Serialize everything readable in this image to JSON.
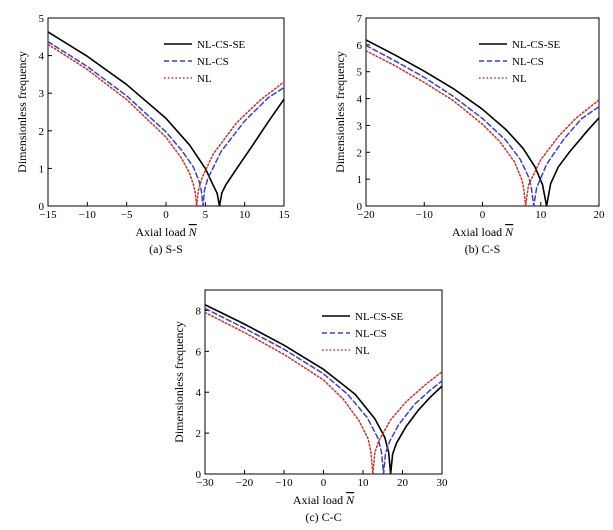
{
  "chart_data": [
    {
      "type": "line",
      "caption": "(a) S-S",
      "xlabel": "Axial load",
      "xlabel_symbol": "N",
      "ylabel": "Dimensionless frequency",
      "xlim": [
        -15,
        15
      ],
      "ylim": [
        0,
        5
      ],
      "xticks": [
        -15,
        -10,
        -5,
        0,
        5,
        10,
        15
      ],
      "yticks": [
        0,
        1,
        2,
        3,
        4,
        5
      ],
      "grid": false,
      "legend_position": "top-right",
      "series": [
        {
          "name": "NL-CS-SE",
          "color": "#000000",
          "style": "solid",
          "critical_load": 6.8,
          "x": [
            -15,
            -10,
            -5,
            0,
            3,
            5,
            6,
            6.5,
            6.8,
            7.1,
            7.6,
            9,
            11,
            13,
            15
          ],
          "y": [
            4.63,
            3.98,
            3.23,
            2.33,
            1.62,
            1.0,
            0.55,
            0.34,
            0.0,
            0.35,
            0.56,
            1.0,
            1.61,
            2.24,
            2.84
          ]
        },
        {
          "name": "NL-CS",
          "color": "#3a3fc8",
          "style": "dashed",
          "critical_load": 4.7,
          "x": [
            -15,
            -10,
            -5,
            0,
            2,
            3.5,
            4.2,
            4.5,
            4.7,
            4.9,
            5.3,
            7,
            10,
            13,
            15
          ],
          "y": [
            4.37,
            3.71,
            2.93,
            1.97,
            1.48,
            1.03,
            0.66,
            0.4,
            0.0,
            0.43,
            0.72,
            1.45,
            2.26,
            2.88,
            3.15
          ]
        },
        {
          "name": "NL",
          "color": "#c8322a",
          "style": "dotted",
          "critical_load": 3.9,
          "x": [
            -15,
            -10,
            -5,
            0,
            2,
            3,
            3.5,
            3.7,
            3.9,
            4.1,
            4.6,
            6,
            9,
            12,
            15
          ],
          "y": [
            4.3,
            3.63,
            2.83,
            1.83,
            1.26,
            0.87,
            0.56,
            0.37,
            0.0,
            0.4,
            0.76,
            1.38,
            2.22,
            2.82,
            3.3
          ]
        }
      ]
    },
    {
      "type": "line",
      "caption": "(b) C-S",
      "xlabel": "Axial load",
      "xlabel_symbol": "N",
      "ylabel": "Dimensionless frequency",
      "xlim": [
        -20,
        20
      ],
      "ylim": [
        0,
        7
      ],
      "xticks": [
        -20,
        -10,
        0,
        10,
        20
      ],
      "yticks": [
        0,
        1,
        2,
        3,
        4,
        5,
        6,
        7
      ],
      "grid": false,
      "legend_position": "top-right",
      "series": [
        {
          "name": "NL-CS-SE",
          "color": "#000000",
          "style": "solid",
          "critical_load": 11.0,
          "x": [
            -20,
            -15,
            -10,
            -5,
            0,
            4,
            7,
            9,
            10.3,
            11.0,
            11.7,
            13,
            15,
            18,
            20
          ],
          "y": [
            6.18,
            5.62,
            5.02,
            4.37,
            3.6,
            2.85,
            2.14,
            1.46,
            0.8,
            0.0,
            0.83,
            1.45,
            2.03,
            2.8,
            3.28
          ]
        },
        {
          "name": "NL-CS",
          "color": "#3a3fc8",
          "style": "dashed",
          "critical_load": 8.8,
          "x": [
            -20,
            -15,
            -10,
            -5,
            0,
            4,
            6.5,
            8,
            8.4,
            8.8,
            9.3,
            11,
            14,
            17,
            20
          ],
          "y": [
            5.98,
            5.4,
            4.79,
            4.08,
            3.26,
            2.45,
            1.73,
            1.04,
            0.65,
            0.0,
            0.68,
            1.55,
            2.5,
            3.25,
            3.7
          ]
        },
        {
          "name": "NL",
          "color": "#c8322a",
          "style": "dotted",
          "critical_load": 7.4,
          "x": [
            -20,
            -15,
            -10,
            -5,
            0,
            3,
            5.5,
            6.8,
            7.1,
            7.4,
            7.9,
            10,
            13,
            16,
            20
          ],
          "y": [
            5.78,
            5.22,
            4.6,
            3.92,
            3.04,
            2.39,
            1.64,
            0.95,
            0.62,
            0.0,
            0.78,
            1.72,
            2.58,
            3.26,
            3.95
          ]
        }
      ]
    },
    {
      "type": "line",
      "caption": "(c) C-C",
      "xlabel": "Axial load",
      "xlabel_symbol": "N",
      "ylabel": "Dimensionless frequency",
      "xlim": [
        -30,
        30
      ],
      "ylim": [
        0,
        9
      ],
      "xticks": [
        -30,
        -20,
        -10,
        0,
        10,
        20,
        30
      ],
      "yticks": [
        0,
        2,
        4,
        6,
        8
      ],
      "grid": false,
      "legend_position": "top-right",
      "series": [
        {
          "name": "NL-CS-SE",
          "color": "#000000",
          "style": "solid",
          "critical_load": 17.0,
          "x": [
            -30,
            -20,
            -10,
            0,
            8,
            13,
            15.5,
            16.5,
            17.0,
            17.5,
            18.5,
            21,
            24,
            27,
            30
          ],
          "y": [
            8.28,
            7.33,
            6.3,
            5.12,
            3.9,
            2.7,
            1.8,
            1.05,
            0.0,
            0.98,
            1.52,
            2.35,
            3.12,
            3.75,
            4.3
          ]
        },
        {
          "name": "NL-CS",
          "color": "#3a3fc8",
          "style": "dashed",
          "critical_load": 15.2,
          "x": [
            -30,
            -20,
            -10,
            0,
            6,
            11,
            13.8,
            14.7,
            15.2,
            15.7,
            16.8,
            19,
            23,
            27,
            30
          ],
          "y": [
            8.1,
            7.13,
            6.1,
            4.9,
            3.92,
            2.78,
            1.75,
            1.05,
            0.0,
            1.02,
            1.62,
            2.4,
            3.4,
            4.1,
            4.55
          ]
        },
        {
          "name": "NL",
          "color": "#c8322a",
          "style": "dotted",
          "critical_load": 12.5,
          "x": [
            -30,
            -20,
            -10,
            0,
            5,
            9,
            11.3,
            12.0,
            12.5,
            13.0,
            14,
            17,
            21,
            26,
            30
          ],
          "y": [
            7.9,
            6.92,
            5.85,
            4.6,
            3.66,
            2.6,
            1.72,
            1.08,
            0.0,
            1.05,
            1.62,
            2.65,
            3.55,
            4.4,
            5.0
          ]
        }
      ]
    }
  ]
}
